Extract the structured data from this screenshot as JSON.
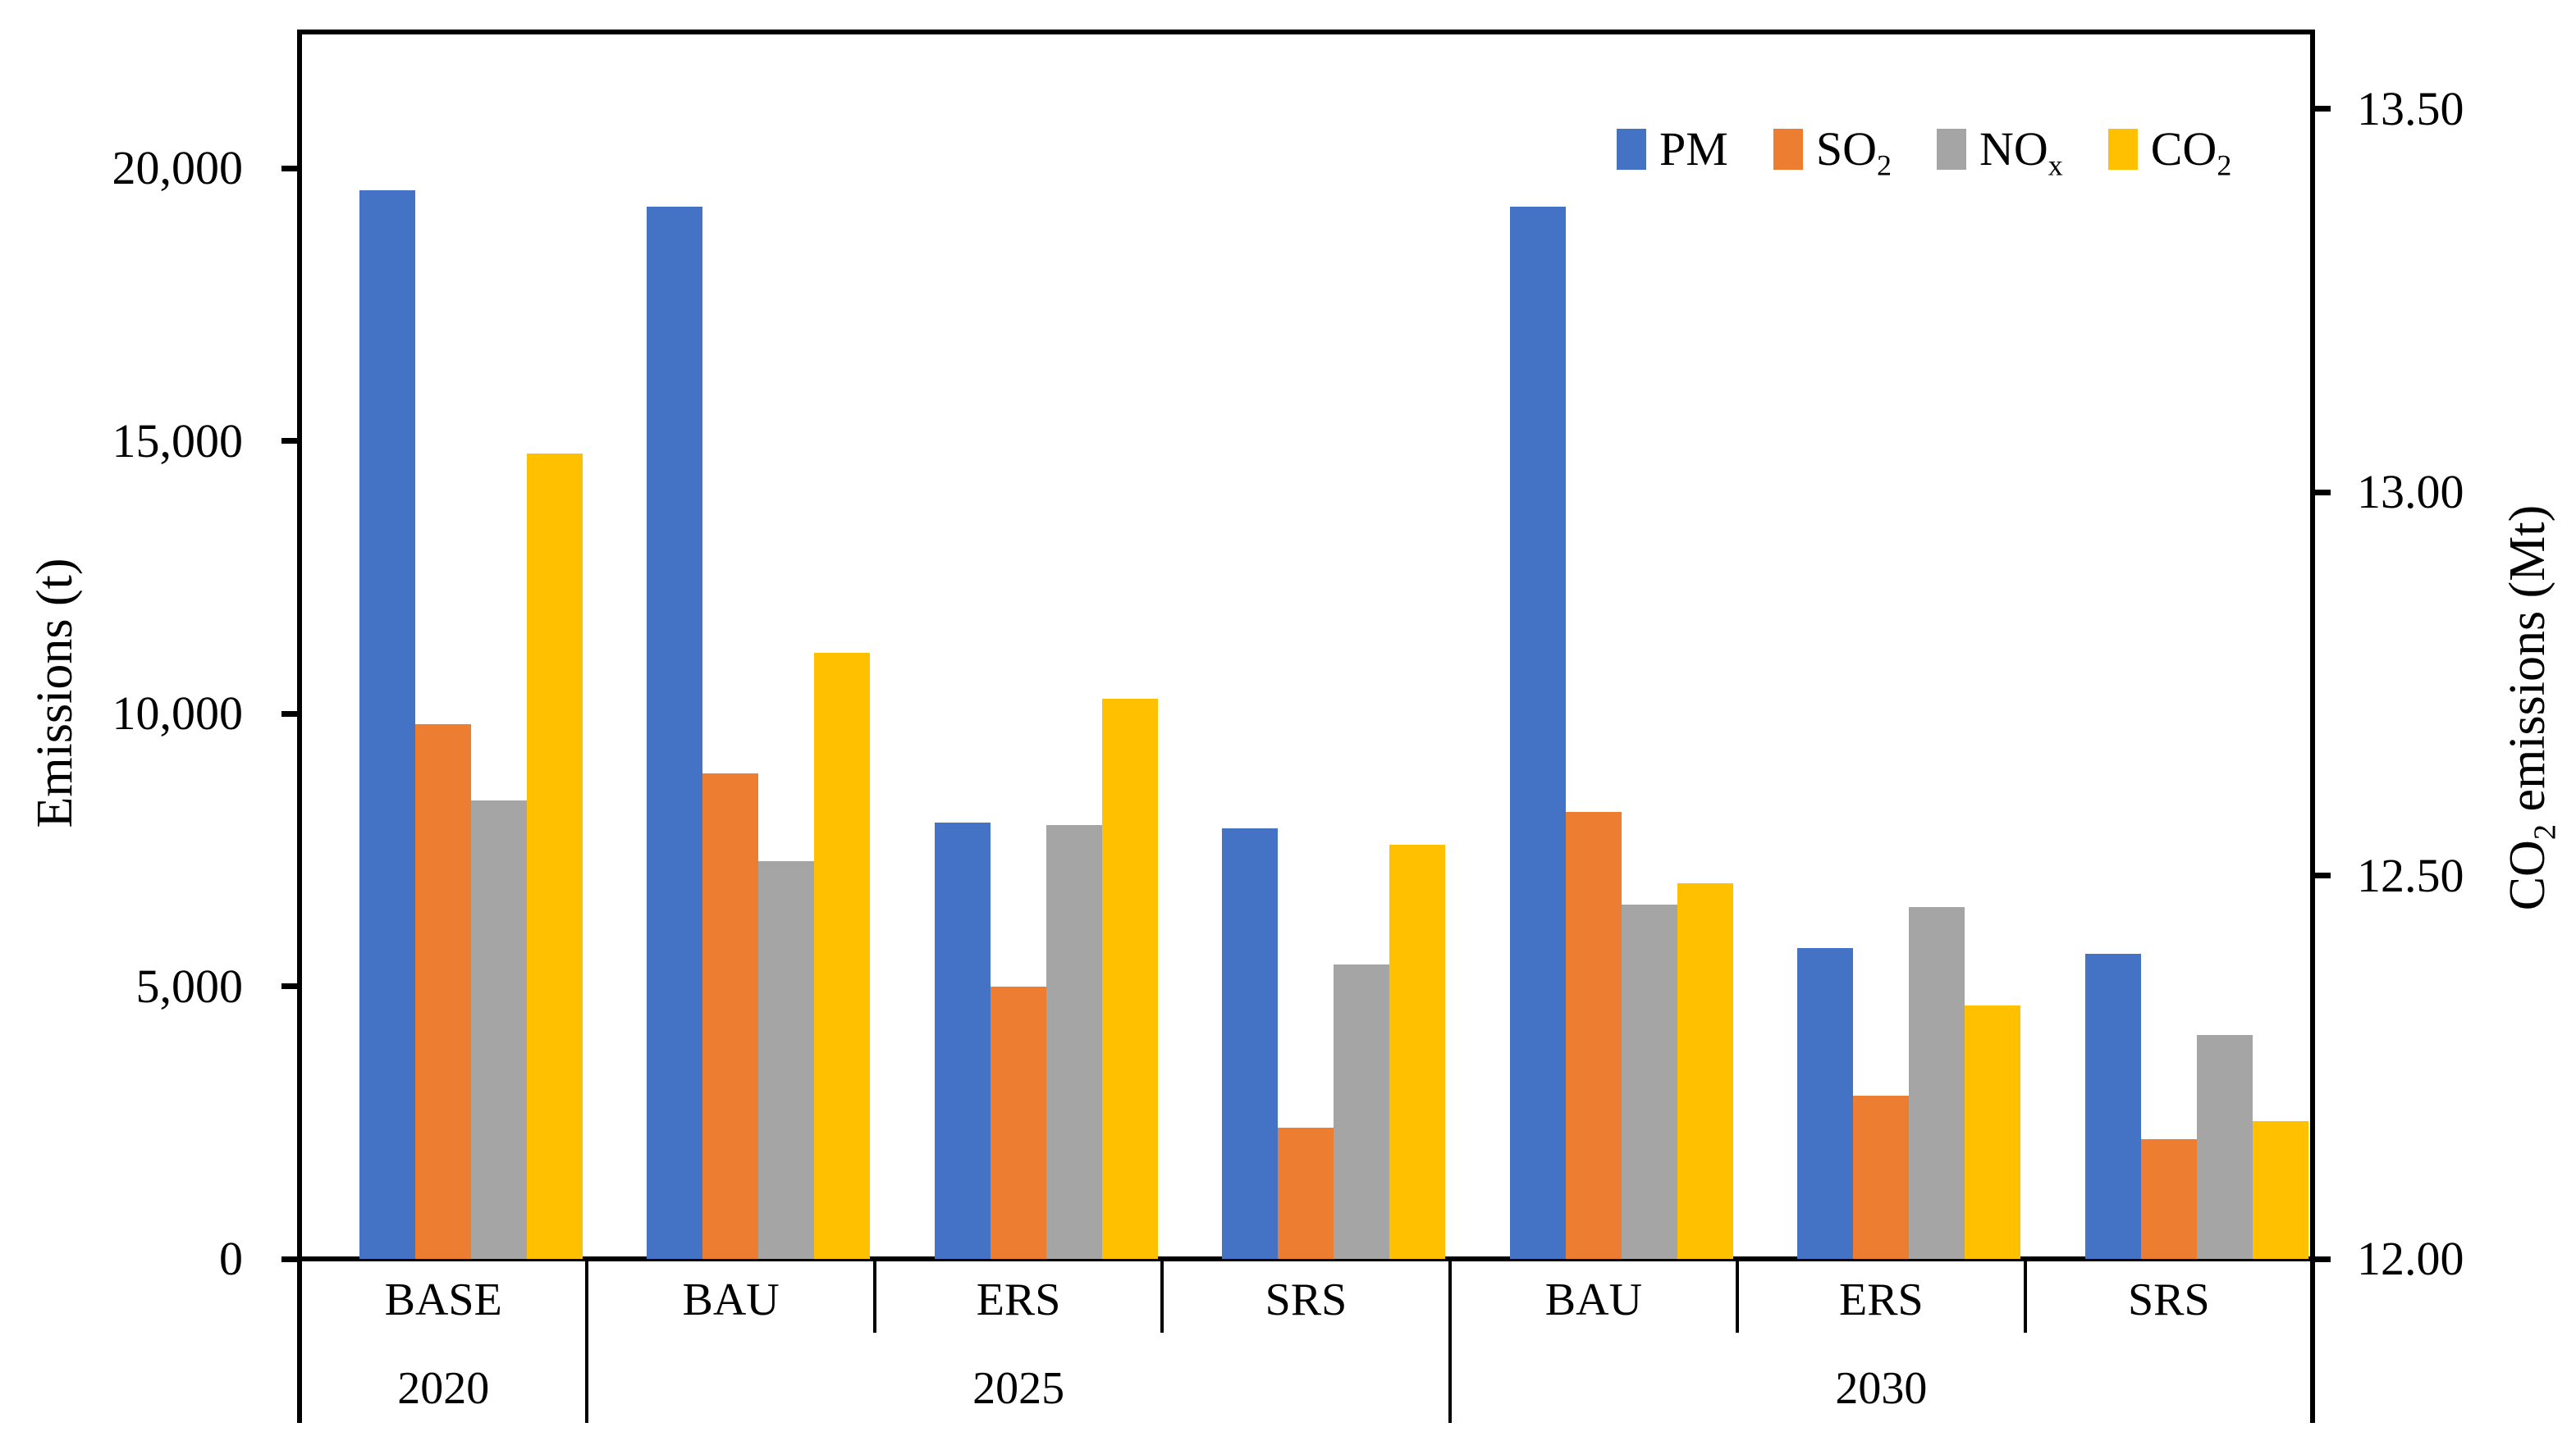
{
  "chart_data": {
    "type": "bar",
    "title": "",
    "grid": false,
    "legend_position": "top-right",
    "categories": [
      "BASE",
      "BAU",
      "ERS",
      "SRS",
      "BAU",
      "ERS",
      "SRS"
    ],
    "year_groups": [
      {
        "label": "2020",
        "span": 1
      },
      {
        "label": "2025",
        "span": 3
      },
      {
        "label": "2030",
        "span": 3
      }
    ],
    "series": [
      {
        "name": "PM",
        "name_sub": "",
        "color": "#4472C4",
        "axis": "left",
        "values": [
          19600,
          19300,
          8000,
          7900,
          19300,
          5700,
          5600
        ]
      },
      {
        "name": "SO",
        "name_sub": "2",
        "color": "#ED7D31",
        "axis": "left",
        "values": [
          9800,
          8900,
          5000,
          2400,
          8200,
          3000,
          2200
        ]
      },
      {
        "name": "NO",
        "name_sub": "x",
        "color": "#A5A5A5",
        "axis": "left",
        "values": [
          8400,
          7300,
          7950,
          5400,
          6500,
          6450,
          4100
        ]
      },
      {
        "name": "CO",
        "name_sub": "2",
        "color": "#FFC000",
        "axis": "right",
        "values": [
          13.05,
          12.79,
          12.73,
          12.54,
          12.49,
          12.33,
          12.18
        ]
      }
    ],
    "left_axis": {
      "label": "Emissions (t)",
      "min": 0,
      "max": 22500,
      "tick_values": [
        0,
        5000,
        10000,
        15000,
        20000
      ],
      "tick_labels": [
        "0",
        "5,000",
        "10,000",
        "15,000",
        "20,000"
      ]
    },
    "right_axis": {
      "label_pre": "CO",
      "label_sub": "2",
      "label_post": " emissions (Mt)",
      "min": 12.0,
      "max": 13.6,
      "tick_values": [
        12.0,
        12.5,
        13.0,
        13.5
      ],
      "tick_labels": [
        "12.00",
        "12.50",
        "13.00",
        "13.50"
      ]
    },
    "colors": {
      "pm": "#4472C4",
      "so2": "#ED7D31",
      "nox": "#A5A5A5",
      "co2": "#FFC000",
      "axis": "#000000",
      "background": "#FFFFFF"
    }
  }
}
